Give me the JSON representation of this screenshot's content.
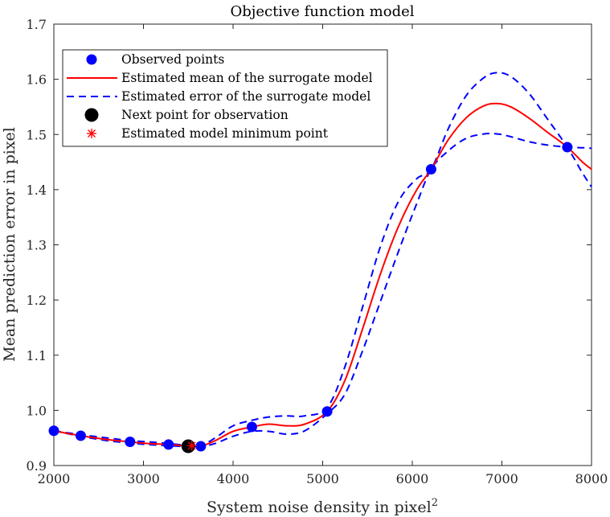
{
  "chart_data": {
    "type": "line",
    "title": "Objective function model",
    "xlabel": "System noise density in pixel",
    "xlabel_superscript": "2",
    "ylabel": "Mean prediction error in pixel",
    "xlim": [
      2000,
      8000
    ],
    "ylim": [
      0.9,
      1.7
    ],
    "xticks": [
      2000,
      3000,
      4000,
      5000,
      6000,
      7000,
      8000
    ],
    "yticks": [
      "0.9",
      "1.0",
      "1.1",
      "1.2",
      "1.3",
      "1.4",
      "1.5",
      "1.6",
      "1.7"
    ],
    "grid": false,
    "legend_position": "top-left",
    "legend": [
      {
        "label": "Observed points",
        "marker": "filled-circle",
        "color": "#0000ff"
      },
      {
        "label": "Estimated mean of the surrogate model",
        "marker": "solid-line",
        "color": "#ff0000"
      },
      {
        "label": "Estimated error of the surrogate model",
        "marker": "dashed-line",
        "color": "#0000ff"
      },
      {
        "label": "Next point for observation",
        "marker": "large-filled-circle",
        "color": "#000000"
      },
      {
        "label": "Estimated model minimum point",
        "marker": "asterisk",
        "color": "#ff0000"
      }
    ],
    "observed_points": {
      "x": [
        2000,
        2300,
        2850,
        3280,
        3520,
        3640,
        4210,
        5050,
        6210,
        7730
      ],
      "y": [
        0.963,
        0.954,
        0.943,
        0.938,
        0.935,
        0.935,
        0.97,
        0.998,
        1.437,
        1.477
      ]
    },
    "mean_curve": {
      "x": [
        2000,
        2300,
        2600,
        2850,
        3050,
        3280,
        3520,
        3640,
        3800,
        4000,
        4210,
        4400,
        4600,
        4800,
        5050,
        5250,
        5450,
        5650,
        5850,
        6050,
        6210,
        6400,
        6600,
        6800,
        6950,
        7100,
        7300,
        7500,
        7730,
        7900,
        8000
      ],
      "y": [
        0.963,
        0.954,
        0.947,
        0.943,
        0.94,
        0.938,
        0.935,
        0.935,
        0.945,
        0.962,
        0.97,
        0.975,
        0.972,
        0.975,
        0.998,
        1.055,
        1.15,
        1.25,
        1.335,
        1.4,
        1.437,
        1.49,
        1.53,
        1.552,
        1.556,
        1.55,
        1.53,
        1.505,
        1.477,
        1.45,
        1.437
      ]
    },
    "error_upper": {
      "x": [
        2000,
        2300,
        2600,
        2850,
        3050,
        3280,
        3520,
        3640,
        3800,
        4000,
        4210,
        4400,
        4600,
        4800,
        5050,
        5250,
        5450,
        5650,
        5850,
        6050,
        6210,
        6400,
        6600,
        6800,
        6950,
        7100,
        7300,
        7500,
        7730,
        7900,
        8000
      ],
      "y": [
        0.963,
        0.956,
        0.95,
        0.945,
        0.943,
        0.94,
        0.936,
        0.936,
        0.95,
        0.972,
        0.982,
        0.988,
        0.99,
        0.99,
        1.005,
        1.08,
        1.19,
        1.3,
        1.38,
        1.42,
        1.437,
        1.51,
        1.57,
        1.603,
        1.612,
        1.605,
        1.575,
        1.53,
        1.477,
        1.43,
        1.405
      ]
    },
    "error_lower": {
      "x": [
        2000,
        2300,
        2600,
        2850,
        3050,
        3280,
        3520,
        3640,
        3800,
        4000,
        4210,
        4400,
        4600,
        4800,
        5050,
        5250,
        5450,
        5650,
        5850,
        6050,
        6210,
        6400,
        6600,
        6800,
        6950,
        7100,
        7300,
        7500,
        7730,
        7900,
        8000
      ],
      "y": [
        0.963,
        0.953,
        0.945,
        0.941,
        0.938,
        0.936,
        0.934,
        0.934,
        0.94,
        0.953,
        0.962,
        0.962,
        0.957,
        0.963,
        0.994,
        1.03,
        1.11,
        1.2,
        1.29,
        1.375,
        1.437,
        1.47,
        1.493,
        1.501,
        1.501,
        1.496,
        1.487,
        1.481,
        1.477,
        1.476,
        1.475
      ]
    },
    "next_point": {
      "x": 3500,
      "y": 0.935
    },
    "minimum_point": {
      "x": 3540,
      "y": 0.936
    }
  }
}
